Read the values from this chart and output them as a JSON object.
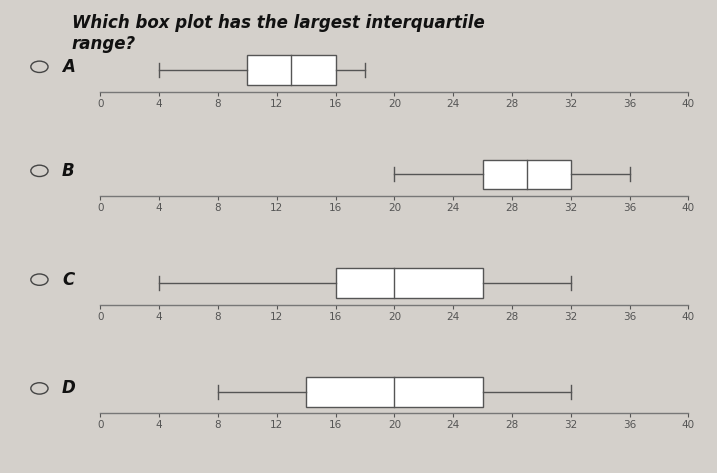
{
  "title": "Which box plot has the largest interquartile\nrange?",
  "title_fontsize": 12,
  "background_color": "#d4d0cb",
  "box_color": "#ffffff",
  "line_color": "#555555",
  "axis_color": "#777777",
  "tick_color": "#555555",
  "plots": [
    {
      "label": "A",
      "whisker_low": 4,
      "q1": 10,
      "median": 13,
      "q3": 16,
      "whisker_high": 18
    },
    {
      "label": "B",
      "whisker_low": 20,
      "q1": 26,
      "median": 29,
      "q3": 32,
      "whisker_high": 36
    },
    {
      "label": "C",
      "whisker_low": 4,
      "q1": 16,
      "median": 20,
      "q3": 26,
      "whisker_high": 32
    },
    {
      "label": "D",
      "whisker_low": 8,
      "q1": 14,
      "median": 20,
      "q3": 26,
      "whisker_high": 32
    }
  ],
  "xlim": [
    0,
    40
  ],
  "xticks": [
    0,
    4,
    8,
    12,
    16,
    20,
    24,
    28,
    32,
    36,
    40
  ]
}
